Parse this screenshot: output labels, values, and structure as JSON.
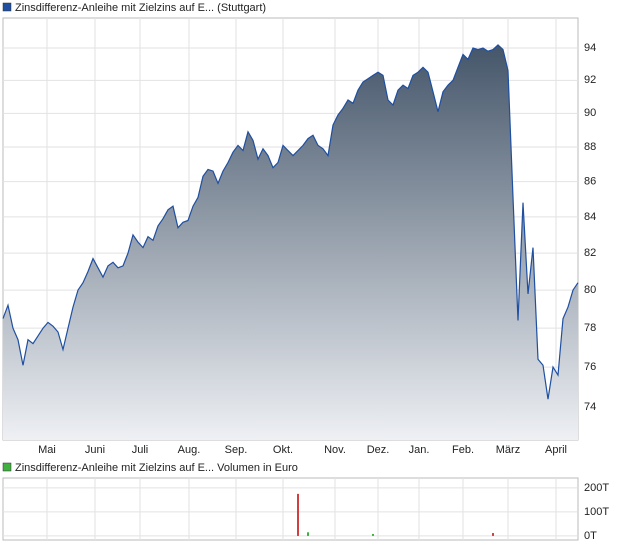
{
  "chart_data": [
    {
      "type": "area",
      "log_scale": true,
      "grid": true,
      "series": [
        {
          "name": "Zinsdifferenz-Anleihe mit Zielzins auf E... (Stuttgart)",
          "color": "#1f4fa0",
          "values": [
            78.5,
            79.2,
            78,
            77.4,
            76.1,
            77.4,
            77.2,
            77.6,
            78,
            78.3,
            78.1,
            77.8,
            76.9,
            78,
            79.1,
            80,
            80.4,
            81,
            81.7,
            81.2,
            80.7,
            81.3,
            81.5,
            81.2,
            81.3,
            82,
            83,
            82.6,
            82.3,
            82.9,
            82.7,
            83.5,
            83.9,
            84.4,
            84.6,
            83.4,
            83.7,
            83.8,
            84.6,
            85.1,
            86.3,
            86.7,
            86.6,
            85.9,
            86.6,
            87.1,
            87.7,
            88.1,
            87.8,
            88.9,
            88.4,
            87.3,
            87.9,
            87.5,
            86.8,
            87.1,
            88.1,
            87.8,
            87.5,
            87.8,
            88.1,
            88.5,
            88.7,
            88.1,
            87.9,
            87.5,
            89.3,
            89.9,
            90.3,
            90.8,
            90.6,
            91.4,
            91.9,
            92.1,
            92.3,
            92.5,
            92.3,
            90.8,
            90.5,
            91.4,
            91.7,
            91.5,
            92.3,
            92.5,
            92.8,
            92.5,
            91.3,
            90.1,
            91.3,
            91.7,
            92,
            92.8,
            93.6,
            93.3,
            94,
            93.9,
            94,
            93.8,
            93.9,
            94.2,
            93.9,
            92.6,
            85.1,
            78.4,
            84.8,
            79.8,
            82.3,
            76.4,
            76.1,
            74.4,
            76,
            75.6,
            78.5,
            79.1,
            80,
            80.4
          ]
        }
      ],
      "xlim": [
        0,
        115
      ],
      "xticks": [
        {
          "value": 8.8,
          "label": "Mai"
        },
        {
          "value": 18.4,
          "label": "Juni"
        },
        {
          "value": 27.4,
          "label": "Juli"
        },
        {
          "value": 37.2,
          "label": "Aug."
        },
        {
          "value": 46.6,
          "label": "Sep."
        },
        {
          "value": 56,
          "label": "Okt."
        },
        {
          "value": 66.4,
          "label": "Nov."
        },
        {
          "value": 75,
          "label": "Dez."
        },
        {
          "value": 83.2,
          "label": "Jan."
        },
        {
          "value": 92,
          "label": "Feb."
        },
        {
          "value": 101,
          "label": "März"
        },
        {
          "value": 110.6,
          "label": "April"
        }
      ],
      "ylim": [
        72.4,
        95.9
      ],
      "yticks": [
        74,
        76,
        78,
        80,
        82,
        84,
        86,
        88,
        90,
        92,
        94
      ]
    },
    {
      "type": "bar",
      "title": "Zinsdifferenz-Anleihe mit Zielzins auf E... Volumen in Euro",
      "legend_color": "#40b040",
      "grid": true,
      "x": [
        59,
        61,
        74,
        98
      ],
      "values": [
        175000,
        15000,
        8000,
        12000
      ],
      "colors": [
        "#d04040",
        "#40b040",
        "#40b040",
        "#d04040"
      ],
      "xlim": [
        0,
        115
      ],
      "ylim": [
        -17000,
        241000
      ],
      "yticks": [
        {
          "value": 0,
          "label": "0T"
        },
        {
          "value": 100000,
          "label": "100T"
        },
        {
          "value": 200000,
          "label": "200T"
        }
      ]
    }
  ]
}
